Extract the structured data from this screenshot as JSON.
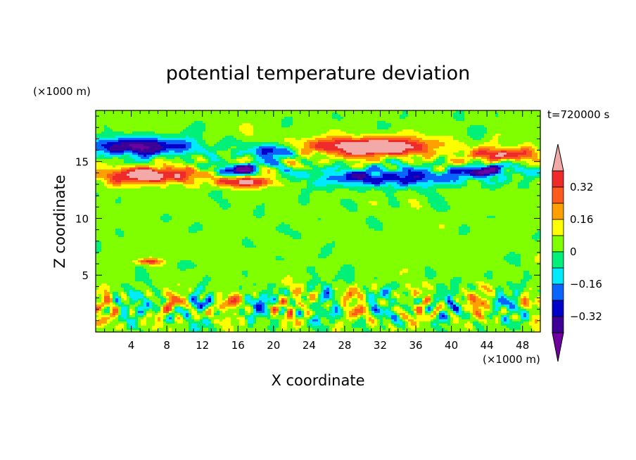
{
  "chart_data": {
    "type": "heatmap",
    "title": "potential temperature deviation",
    "xlabel": "X coordinate",
    "ylabel": "Z coordinate",
    "x_unit": "(×1000 m)",
    "y_unit": "(×1000 m)",
    "time_label": "t=720000 s",
    "xlim": [
      0,
      50
    ],
    "ylim": [
      0,
      19.5
    ],
    "x_ticks": [
      "4",
      "8",
      "12",
      "16",
      "20",
      "24",
      "28",
      "32",
      "36",
      "40",
      "44",
      "48"
    ],
    "y_ticks": [
      "5",
      "10",
      "15"
    ],
    "colorbar": {
      "tick_labels": [
        "0.32",
        "0.16",
        "0",
        "−0.16",
        "−0.32"
      ],
      "levels": [
        {
          "min": 0.4,
          "max": null,
          "color": "#f4a9a9"
        },
        {
          "min": 0.32,
          "max": 0.4,
          "color": "#ee2a2a"
        },
        {
          "min": 0.24,
          "max": 0.32,
          "color": "#ff5a1e"
        },
        {
          "min": 0.16,
          "max": 0.24,
          "color": "#ff9f00"
        },
        {
          "min": 0.08,
          "max": 0.16,
          "color": "#ffff00"
        },
        {
          "min": 0.0,
          "max": 0.08,
          "color": "#80ff00"
        },
        {
          "min": -0.08,
          "max": 0.0,
          "color": "#00f07a"
        },
        {
          "min": -0.16,
          "max": -0.08,
          "color": "#00eaff"
        },
        {
          "min": -0.24,
          "max": -0.16,
          "color": "#0a64ff"
        },
        {
          "min": -0.32,
          "max": -0.24,
          "color": "#0000c8"
        },
        {
          "min": -0.4,
          "max": -0.32,
          "color": "#3c0096"
        },
        {
          "min": null,
          "max": -0.4,
          "color": "#6e00a0"
        }
      ]
    },
    "features": [
      {
        "level_color": "#f4a9a9",
        "x_range": [
          24,
          38
        ],
        "z_range": [
          15.5,
          17.3
        ],
        "note": "positive anomaly band"
      },
      {
        "level_color": "#f4a9a9",
        "x_range": [
          1,
          10
        ],
        "z_range": [
          13,
          14.8
        ],
        "note": "positive anomaly band"
      },
      {
        "level_color": "#0a64ff",
        "x_range": [
          26,
          44
        ],
        "z_range": [
          12.8,
          14.5
        ],
        "note": "negative anomaly band"
      },
      {
        "level_color": "#3c0096",
        "x_range": [
          0,
          14
        ],
        "z_range": [
          15,
          17
        ],
        "note": "negative anomaly band"
      }
    ]
  }
}
